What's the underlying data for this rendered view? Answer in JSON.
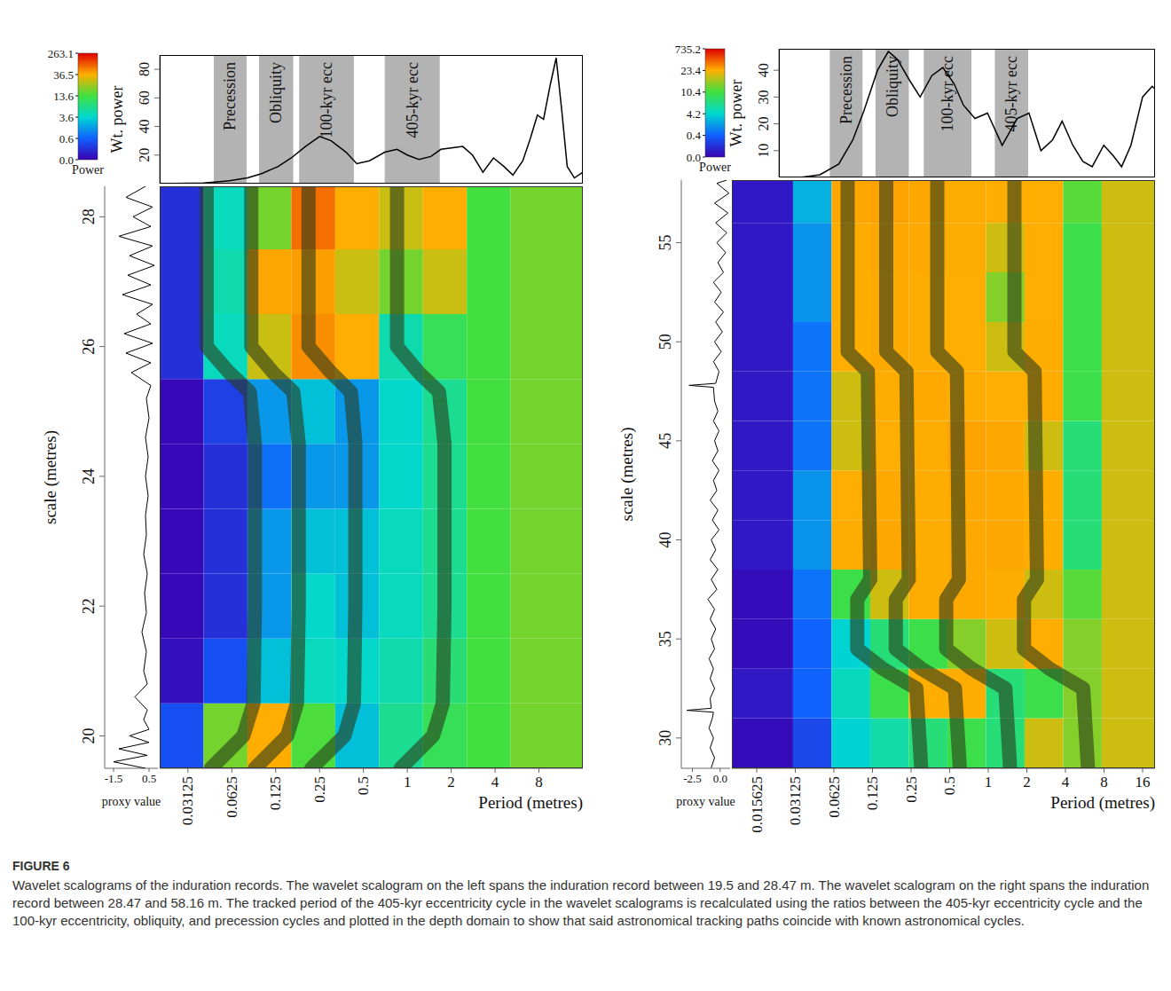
{
  "caption": {
    "label": "FIGURE 6",
    "text": "Wavelet scalograms of the induration records. The wavelet scalogram on the left spans the induration record between 19.5 and 28.47 m. The wavelet scalogram on the right spans the induration record between 28.47 and 58.16 m. The tracked period of the 405-kyr eccentricity cycle in the wavelet scalograms is recalculated using the ratios between the 405-kyr eccentricity cycle and the 100-kyr eccentricity, obliquity, and precession cycles and plotted in the depth domain to show that said astronomical tracking paths coincide with known astronomical cycles."
  },
  "chart_data": [
    {
      "type": "heatmap",
      "xlabel": "Period (metres)",
      "ylabel": "scale (metres)",
      "log": "x",
      "xlim": [
        0.02,
        16
      ],
      "xticks": [
        0.03125,
        0.0625,
        0.125,
        0.25,
        0.5,
        1,
        2,
        4,
        8
      ],
      "ylim": [
        19.5,
        28.47
      ],
      "yticks": [
        20,
        22,
        24,
        26,
        28
      ],
      "heatmap": {
        "x_edges": [
          0.02,
          0.04,
          0.08,
          0.16,
          0.32,
          0.64,
          1.28,
          2.56,
          5.12,
          16
        ],
        "y_edges": [
          19.5,
          20.5,
          21.5,
          22.5,
          23.5,
          24.5,
          25.5,
          26.5,
          27.5,
          28.47
        ],
        "cells": [
          [
            0.5,
            20,
            40,
            15,
            3,
            8,
            12,
            14,
            20
          ],
          [
            0.1,
            0.5,
            3,
            5,
            4,
            6,
            10,
            14,
            20
          ],
          [
            0.05,
            0.3,
            2,
            4,
            3,
            5,
            8,
            14,
            20
          ],
          [
            0.05,
            0.3,
            2,
            3,
            3,
            5,
            8,
            14,
            20
          ],
          [
            0.05,
            0.3,
            1,
            2,
            2,
            4,
            8,
            14,
            20
          ],
          [
            0.05,
            0.4,
            2,
            3,
            2,
            4,
            8,
            14,
            20
          ],
          [
            0.3,
            5,
            30,
            80,
            40,
            6,
            12,
            14,
            20
          ],
          [
            0.3,
            6,
            50,
            60,
            30,
            20,
            30,
            14,
            20
          ],
          [
            0.3,
            5,
            20,
            120,
            40,
            30,
            40,
            14,
            20
          ]
        ]
      },
      "colorbar": {
        "title": "Power",
        "ticks": [
          {
            "value": 0,
            "label": "0.0"
          },
          0.6,
          3.6,
          13.6,
          36.5,
          263.1
        ],
        "colors": [
          "#3a00b0",
          "#1060ff",
          "#00d8d0",
          "#40e040",
          "#ffb000",
          "#e00000"
        ]
      },
      "track_depths": [
        19.5,
        20.0,
        20.5,
        22.0,
        24.5,
        25.3,
        25.6,
        26.0,
        28.47
      ],
      "bands": [
        {
          "name": "Precession",
          "range": [
            0.047,
            0.079
          ],
          "color": "#2a3a1a",
          "track": [
            0.045,
            0.075,
            0.088,
            0.09,
            0.09,
            0.083,
            0.06,
            0.042,
            0.042
          ]
        },
        {
          "name": "Obliquity",
          "range": [
            0.096,
            0.165
          ],
          "color": "#2a3a1a",
          "track": [
            0.09,
            0.15,
            0.175,
            0.18,
            0.18,
            0.165,
            0.12,
            0.085,
            0.085
          ]
        },
        {
          "name": "100-kyr ecc",
          "range": [
            0.181,
            0.43
          ],
          "color": "#2a3a1a",
          "track": [
            0.22,
            0.37,
            0.43,
            0.44,
            0.44,
            0.41,
            0.3,
            0.21,
            0.21
          ]
        },
        {
          "name": "405-kyr ecc",
          "range": [
            0.7,
            1.67
          ],
          "color": "#2a3a1a",
          "track": [
            0.9,
            1.5,
            1.75,
            1.8,
            1.8,
            1.65,
            1.2,
            0.85,
            0.85
          ]
        }
      ],
      "spectrum": {
        "ylabel": "Wt. power",
        "tick_labels": "y",
        "color": "#000000",
        "xlim": [
          0.02,
          16
        ],
        "ylim": [
          0,
          90
        ],
        "yticks": [
          20,
          40,
          60,
          80
        ],
        "x": [
          0.02,
          0.04,
          0.06,
          0.08,
          0.1,
          0.13,
          0.16,
          0.2,
          0.25,
          0.3,
          0.38,
          0.45,
          0.55,
          0.7,
          0.85,
          1.0,
          1.2,
          1.45,
          1.7,
          2.0,
          2.4,
          2.8,
          3.3,
          3.9,
          4.6,
          5.3,
          6.2,
          7.0,
          7.8,
          8.6,
          9.6,
          10.5,
          11.5,
          12.5,
          14,
          16
        ],
        "values": [
          0,
          0.5,
          2,
          4,
          7,
          12,
          18,
          26,
          33,
          30,
          22,
          14,
          16,
          22,
          24,
          20,
          17,
          19,
          24,
          25,
          26,
          20,
          8,
          18,
          12,
          6,
          16,
          32,
          48,
          45,
          70,
          88,
          50,
          12,
          4,
          8
        ]
      },
      "proxy": {
        "xlabel": "proxy value",
        "color": "#000000",
        "xlim": [
          -2,
          1
        ],
        "xticks": [
          -1.5,
          0.5
        ],
        "depths": [
          19.5,
          19.6,
          19.7,
          19.8,
          19.9,
          20.0,
          20.1,
          20.25,
          20.4,
          20.6,
          20.8,
          21.0,
          21.3,
          21.6,
          21.9,
          22.2,
          22.5,
          22.8,
          23.1,
          23.4,
          23.7,
          24.0,
          24.3,
          24.6,
          24.9,
          25.2,
          25.4,
          25.6,
          25.75,
          25.9,
          26.05,
          26.2,
          26.35,
          26.5,
          26.65,
          26.8,
          26.95,
          27.1,
          27.25,
          27.4,
          27.55,
          27.7,
          27.85,
          28.0,
          28.15,
          28.3,
          28.47
        ],
        "values": [
          0.3,
          -1.5,
          0.4,
          -1.2,
          0.5,
          -0.6,
          0.5,
          0.2,
          0.4,
          -0.3,
          0.4,
          0.2,
          0.35,
          0.1,
          0.35,
          0.25,
          0.4,
          0.2,
          0.35,
          0.3,
          0.45,
          0.3,
          0.45,
          0.3,
          0.5,
          0.35,
          0.6,
          -0.5,
          0.6,
          -0.8,
          0.7,
          -0.9,
          0.6,
          -0.2,
          0.7,
          -1.0,
          0.6,
          -0.7,
          0.8,
          -0.6,
          0.7,
          -1.2,
          0.6,
          -0.4,
          0.7,
          -0.8,
          0.3
        ]
      }
    },
    {
      "type": "heatmap",
      "xlabel": "Period (metres)",
      "ylabel": "scale (metres)",
      "log": "x",
      "xlim": [
        0.01,
        20
      ],
      "xticks": [
        0.015625,
        0.03125,
        0.0625,
        0.125,
        0.25,
        0.5,
        1,
        2,
        4,
        8,
        16
      ],
      "ylim": [
        28.47,
        58.16
      ],
      "yticks": [
        30,
        35,
        40,
        45,
        50,
        55
      ],
      "heatmap": {
        "x_edges": [
          0.01,
          0.03,
          0.06,
          0.12,
          0.24,
          0.48,
          0.96,
          1.92,
          3.84,
          7.68,
          20
        ],
        "y_edges": [
          28.47,
          31,
          33.5,
          36,
          38.5,
          41,
          43.5,
          46,
          48.5,
          51,
          53.5,
          56,
          58.16
        ],
        "cells": [
          [
            0.05,
            0.3,
            4,
            6,
            8,
            10,
            8,
            20,
            15,
            20
          ],
          [
            0.1,
            0.5,
            5,
            10,
            30,
            40,
            8,
            10,
            15,
            20
          ],
          [
            0.05,
            0.5,
            4,
            8,
            10,
            15,
            20,
            30,
            15,
            20
          ],
          [
            0.05,
            1,
            10,
            20,
            40,
            50,
            40,
            20,
            12,
            20
          ],
          [
            0.1,
            2,
            40,
            60,
            40,
            50,
            60,
            30,
            8,
            20
          ],
          [
            0.1,
            2,
            30,
            50,
            40,
            60,
            50,
            30,
            8,
            20
          ],
          [
            0.1,
            1,
            20,
            30,
            40,
            80,
            60,
            20,
            8,
            20
          ],
          [
            0.1,
            1,
            20,
            40,
            50,
            40,
            30,
            40,
            10,
            20
          ],
          [
            0.1,
            1,
            30,
            50,
            40,
            30,
            20,
            40,
            10,
            20
          ],
          [
            0.1,
            2,
            40,
            50,
            40,
            30,
            15,
            30,
            10,
            20
          ],
          [
            0.1,
            2,
            40,
            60,
            50,
            40,
            20,
            30,
            10,
            20
          ],
          [
            0.1,
            3,
            60,
            80,
            60,
            40,
            30,
            30,
            12,
            20
          ]
        ]
      },
      "colorbar": {
        "title": "Power",
        "ticks": [
          {
            "value": 0,
            "label": "0.0"
          },
          0.4,
          4.2,
          10.4,
          23.4,
          735.2
        ],
        "colors": [
          "#3a00b0",
          "#1060ff",
          "#00d8d0",
          "#40e040",
          "#ffb000",
          "#e00000"
        ]
      },
      "track_depths": [
        28.47,
        32.5,
        33.5,
        34.5,
        37.0,
        38.0,
        48.5,
        49.5,
        58.16
      ],
      "bands": [
        {
          "name": "Precession",
          "range": [
            0.0596,
            0.107
          ],
          "color": "#2a3a1a",
          "track": [
            0.3,
            0.275,
            0.15,
            0.095,
            0.095,
            0.12,
            0.115,
            0.08,
            0.08
          ]
        },
        {
          "name": "Obliquity",
          "range": [
            0.135,
            0.245
          ],
          "color": "#2a3a1a",
          "track": [
            0.6,
            0.55,
            0.3,
            0.19,
            0.19,
            0.24,
            0.23,
            0.16,
            0.16
          ]
        },
        {
          "name": "100-kyr ecc",
          "range": [
            0.32,
            0.75
          ],
          "color": "#2a3a1a",
          "track": [
            1.48,
            1.36,
            0.74,
            0.47,
            0.47,
            0.59,
            0.57,
            0.4,
            0.4
          ]
        },
        {
          "name": "405-kyr ecc",
          "range": [
            1.14,
            2.07
          ],
          "color": "#2a3a1a",
          "track": [
            6.0,
            5.5,
            3.0,
            1.9,
            1.9,
            2.4,
            2.3,
            1.6,
            1.6
          ]
        }
      ],
      "spectrum": {
        "ylabel": "Wt. power",
        "tick_labels": "y",
        "color": "#000000",
        "xlim": [
          0.024,
          20
        ],
        "ylim": [
          0,
          48
        ],
        "yticks": [
          10,
          20,
          30,
          40
        ],
        "x": [
          0.025,
          0.035,
          0.05,
          0.07,
          0.09,
          0.11,
          0.14,
          0.17,
          0.2,
          0.25,
          0.3,
          0.37,
          0.45,
          0.55,
          0.65,
          0.8,
          1.0,
          1.3,
          1.7,
          2.1,
          2.6,
          3.2,
          3.8,
          4.6,
          5.5,
          6.5,
          8,
          9.5,
          11,
          13,
          16,
          19,
          20
        ],
        "values": [
          0,
          0,
          1,
          5,
          14,
          25,
          40,
          47,
          44,
          36,
          30,
          38,
          41,
          35,
          27,
          22,
          24,
          12,
          22,
          24,
          10,
          14,
          21,
          12,
          6,
          4,
          12,
          8,
          4,
          12,
          30,
          34,
          33
        ]
      },
      "proxy": {
        "xlabel": "proxy value",
        "color": "#000000",
        "xlim": [
          -3.5,
          0.9
        ],
        "xticks": [
          -2.5,
          {
            "value": 0,
            "label": "0.0"
          }
        ],
        "depths": [
          28.5,
          29,
          29.5,
          30,
          30.5,
          31,
          31.3,
          31.4,
          31.5,
          32,
          32.5,
          33,
          33.5,
          34,
          34.5,
          35,
          35.5,
          36,
          36.5,
          37,
          37.5,
          38,
          38.5,
          39,
          39.5,
          40,
          40.5,
          41,
          41.5,
          42,
          42.5,
          43,
          43.5,
          44,
          44.5,
          45,
          45.5,
          46,
          46.5,
          47,
          47.7,
          47.8,
          47.9,
          48.5,
          49,
          49.5,
          50,
          50.5,
          51,
          51.5,
          52,
          52.5,
          53,
          53.5,
          54,
          54.5,
          55,
          55.5,
          56,
          56.5,
          57,
          57.5,
          58,
          58.16
        ],
        "values": [
          -0.8,
          -0.5,
          -0.9,
          -0.6,
          -1.0,
          -0.7,
          -0.6,
          -3.0,
          -0.8,
          -0.9,
          -0.5,
          -0.9,
          -0.6,
          -1.0,
          -0.5,
          -0.8,
          -0.4,
          -0.9,
          -0.5,
          -1.1,
          -0.3,
          -0.8,
          -0.2,
          -0.9,
          -0.4,
          -0.8,
          -0.1,
          -0.7,
          -0.2,
          -0.9,
          -0.3,
          -0.6,
          -0.1,
          -0.7,
          -0.2,
          -0.5,
          -0.1,
          -0.6,
          -0.2,
          -0.5,
          -0.6,
          -2.8,
          -0.4,
          -0.1,
          -0.6,
          0.1,
          -0.5,
          0.2,
          -0.4,
          0.3,
          -0.5,
          0.1,
          -0.6,
          0.3,
          -0.2,
          0.5,
          -0.3,
          0.6,
          -0.4,
          0.7,
          -0.5,
          0.8,
          -0.3,
          0.6
        ]
      }
    }
  ]
}
